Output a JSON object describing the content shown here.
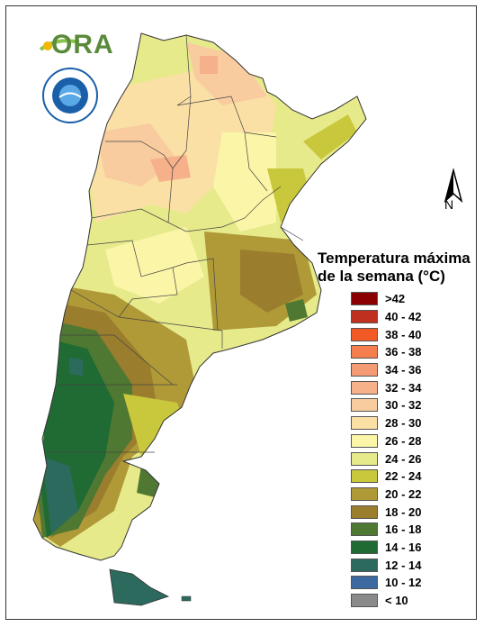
{
  "logo": {
    "text": "ORA"
  },
  "seal": {
    "description": "seal"
  },
  "north_arrow": {
    "label": "N"
  },
  "legend": {
    "title_line1": "Temperatura máxima",
    "title_line2": "de la semana (°C)",
    "items": [
      {
        "label": ">42",
        "color": "#8b0000"
      },
      {
        "label": "40 - 42",
        "color": "#c0301e"
      },
      {
        "label": "38 - 40",
        "color": "#f15a24"
      },
      {
        "label": "36 - 38",
        "color": "#f57e4f"
      },
      {
        "label": "34 - 36",
        "color": "#f49a74"
      },
      {
        "label": "32 - 34",
        "color": "#f6b08a"
      },
      {
        "label": "30 - 32",
        "color": "#f8cc9f"
      },
      {
        "label": "28 - 30",
        "color": "#fbe0a6"
      },
      {
        "label": "26 - 28",
        "color": "#fbf5a7"
      },
      {
        "label": "24 - 26",
        "color": "#e6ea8a"
      },
      {
        "label": "22 - 24",
        "color": "#c9c83c"
      },
      {
        "label": "20 - 22",
        "color": "#b09a38"
      },
      {
        "label": "18 - 20",
        "color": "#9b7d2e"
      },
      {
        "label": "16 - 18",
        "color": "#4f7832"
      },
      {
        "label": "14 - 16",
        "color": "#1f6b33"
      },
      {
        "label": "12 - 14",
        "color": "#2d6a5e"
      },
      {
        "label": "10 - 12",
        "color": "#3c6aa0"
      },
      {
        "label": "< 10",
        "color": "#8a8a8a"
      }
    ]
  }
}
